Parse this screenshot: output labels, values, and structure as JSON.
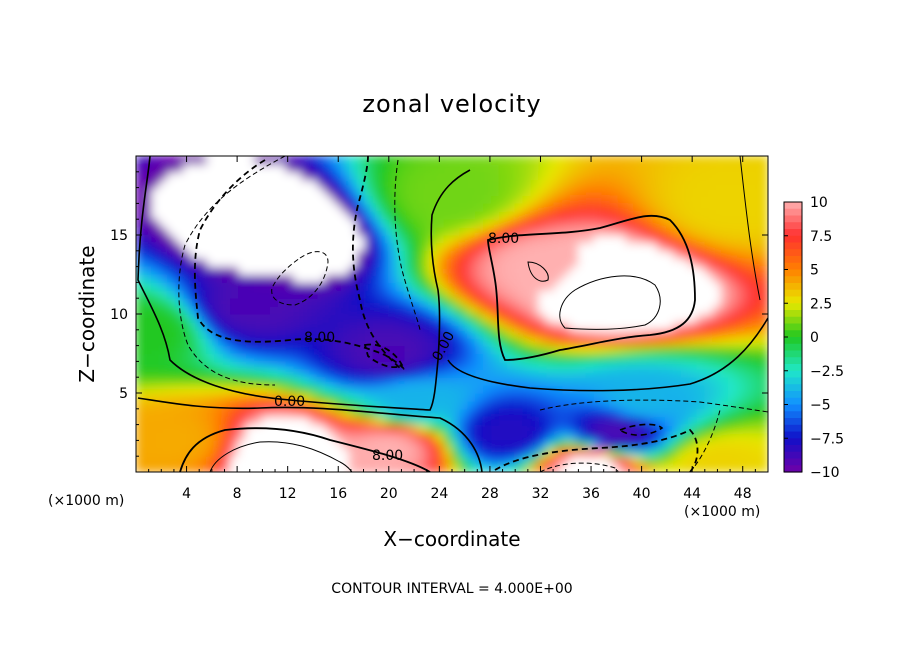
{
  "chart_data": {
    "type": "heatmap",
    "title": "zonal velocity",
    "xlabel": "X−coordinate",
    "ylabel": "Z−coordinate",
    "x_unit": "(×1000 m)",
    "x_unit_right": "(×1000 m)",
    "footer": "CONTOUR INTERVAL = 4.000E+00",
    "xlim": [
      0,
      50
    ],
    "ylim": [
      0,
      20
    ],
    "x_ticks": [
      4,
      8,
      12,
      16,
      20,
      24,
      28,
      32,
      36,
      40,
      44,
      48
    ],
    "x_tick_labels": [
      "4",
      "8",
      "12",
      "16",
      "20",
      "24",
      "28",
      "32",
      "36",
      "40",
      "44",
      "48"
    ],
    "y_ticks": [
      5,
      10,
      15
    ],
    "y_tick_labels": [
      "5",
      "10",
      "15"
    ],
    "colorbar": {
      "range": [
        -10,
        10
      ],
      "ticks": [
        10,
        7.5,
        5,
        2.5,
        0,
        -2.5,
        -5,
        -7.5,
        -10
      ],
      "tick_labels": [
        "10",
        "7.5",
        "5",
        "2.5",
        "0",
        "−2.5",
        "−5",
        "−7.5",
        "−10"
      ],
      "colors": [
        "#ffb0b0",
        "#ff3030",
        "#ff8000",
        "#e8e800",
        "#20c820",
        "#20e8c8",
        "#1090ff",
        "#1010c8",
        "#7000a8"
      ]
    },
    "contour_labels": [
      "8.00",
      "8.00",
      "0.00",
      "0.00",
      "8.00"
    ],
    "features": [
      {
        "x": 11.5,
        "z": 15.0,
        "value": -14
      },
      {
        "x": 9.0,
        "z": 10.5,
        "value": -9
      },
      {
        "x": 20.0,
        "z": 7.5,
        "value": -9
      },
      {
        "x": 38.0,
        "z": 11.5,
        "value": 14
      },
      {
        "x": 32.0,
        "z": 13.0,
        "value": 10
      },
      {
        "x": 12.0,
        "z": 1.2,
        "value": 13
      },
      {
        "x": 20.0,
        "z": 1.5,
        "value": 10
      },
      {
        "x": 36.0,
        "z": 0.3,
        "value": 11
      },
      {
        "x": 38.0,
        "z": 2.5,
        "value": -9
      },
      {
        "x": 29.5,
        "z": 2.5,
        "value": -8
      },
      {
        "x": 40.0,
        "z": 4.5,
        "value": -4
      },
      {
        "x": 22.0,
        "z": 4.5,
        "value": -4
      },
      {
        "x": 3.0,
        "z": 2.0,
        "value": 4
      },
      {
        "x": 46.0,
        "z": 0.5,
        "value": 3
      },
      {
        "x": 47.0,
        "z": 17.0,
        "value": 3
      },
      {
        "x": 25.0,
        "z": 17.5,
        "value": 1
      },
      {
        "x": 1.0,
        "z": 9.0,
        "value": 0
      }
    ]
  }
}
